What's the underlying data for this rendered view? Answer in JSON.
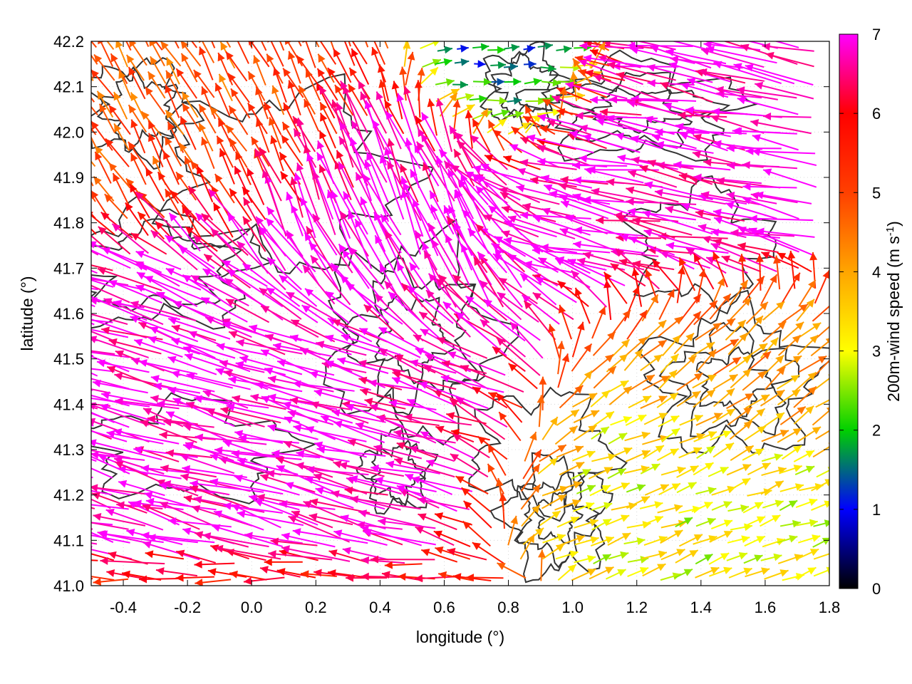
{
  "chart_data": {
    "type": "vector-field",
    "xlabel": "longitude (°)",
    "ylabel": "latitude (°)",
    "xlim": [
      -0.5,
      1.8
    ],
    "ylim": [
      41.0,
      42.2
    ],
    "x_ticks": [
      "-0.4",
      "-0.2",
      "0.0",
      "0.2",
      "0.4",
      "0.6",
      "0.8",
      "1.0",
      "1.2",
      "1.4",
      "1.6",
      "1.8"
    ],
    "y_ticks": [
      "41.0",
      "41.1",
      "41.2",
      "41.3",
      "41.4",
      "41.5",
      "41.6",
      "41.7",
      "41.8",
      "41.9",
      "42.0",
      "42.1",
      "42.2"
    ],
    "colorbar": {
      "label_main": "200m-wind speed (m s",
      "label_sup": "-1",
      "label_end": ")",
      "range": [
        0,
        7
      ],
      "ticks": [
        "0",
        "1",
        "2",
        "3",
        "4",
        "5",
        "6",
        "7"
      ],
      "palette": [
        "#000000",
        "#0000ff",
        "#00d000",
        "#ffff00",
        "#ffa500",
        "#ff4000",
        "#ff0000",
        "#ff00ff"
      ]
    },
    "regions": [
      {
        "name": "SW magenta flow",
        "lon": [
          -0.5,
          0.6
        ],
        "lat": [
          41.05,
          41.65
        ],
        "speed": 7,
        "dir_deg": 165
      },
      {
        "name": "central magenta flow",
        "lon": [
          0.0,
          0.8
        ],
        "lat": [
          41.6,
          42.0
        ],
        "speed": 7,
        "dir_deg": 110
      },
      {
        "name": "NE magenta flow",
        "lon": [
          0.8,
          1.8
        ],
        "lat": [
          41.7,
          42.1
        ],
        "speed": 7,
        "dir_deg": 170
      },
      {
        "name": "NW orange/red",
        "lon": [
          -0.5,
          0.3
        ],
        "lat": [
          41.85,
          42.2
        ],
        "speed": 4.8,
        "dir_deg": 120
      },
      {
        "name": "SE yellow/green",
        "lon": [
          1.0,
          1.8
        ],
        "lat": [
          41.0,
          41.35
        ],
        "speed": 3,
        "dir_deg": 20
      },
      {
        "name": "E orange",
        "lon": [
          1.2,
          1.8
        ],
        "lat": [
          41.3,
          41.6
        ],
        "speed": 4.2,
        "dir_deg": 40
      },
      {
        "name": "N blue calm",
        "lon": [
          0.6,
          1.0
        ],
        "lat": [
          42.0,
          42.2
        ],
        "speed": 1.2,
        "dir_deg": 0
      },
      {
        "name": "S bottom red band",
        "lon": [
          -0.5,
          0.6
        ],
        "lat": [
          41.0,
          41.02
        ],
        "speed": 5.5,
        "dir_deg": 180
      }
    ]
  }
}
